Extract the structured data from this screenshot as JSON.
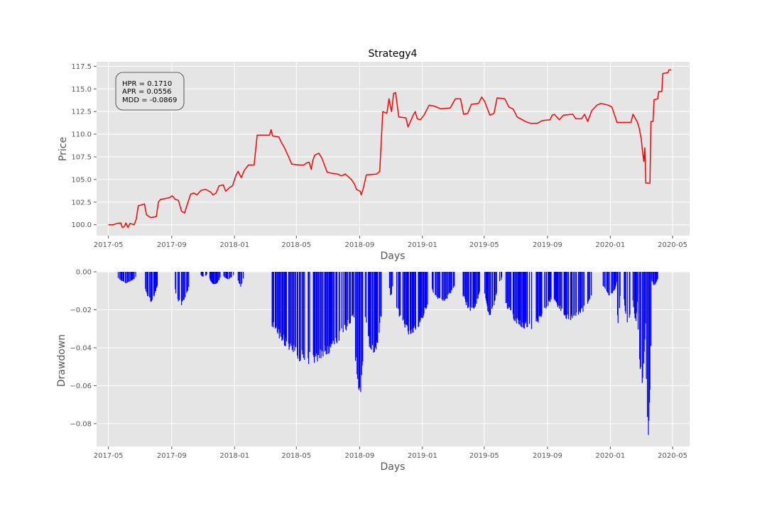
{
  "chart_data": [
    {
      "type": "line",
      "title": "Strategy4",
      "xlabel": "Days",
      "ylabel": "Price",
      "x_tick_labels": [
        "2017-05",
        "2017-09",
        "2018-01",
        "2018-05",
        "2018-09",
        "2019-01",
        "2019-05",
        "2019-09",
        "2020-01",
        "2020-05"
      ],
      "y_tick_labels": [
        "100.0",
        "102.5",
        "105.0",
        "107.5",
        "110.0",
        "112.5",
        "115.0",
        "117.5"
      ],
      "ylim": [
        98.8,
        118.0
      ],
      "xlim": [
        "2017-04-08",
        "2020-06-03"
      ],
      "grid": true,
      "line_color": "#ff0000",
      "stats_box": {
        "hpr": "HPR = 0.1710",
        "apr": "APR = 0.0556",
        "mdd": "MDD = -0.0869"
      },
      "series": [
        {
          "values": [
            [
              "2017-05-01",
              100.0
            ],
            [
              "2017-05-10",
              100.0
            ],
            [
              "2017-05-18",
              100.15
            ],
            [
              "2017-05-25",
              100.2
            ],
            [
              "2017-05-28",
              99.7
            ],
            [
              "2017-06-01",
              99.8
            ],
            [
              "2017-06-04",
              100.2
            ],
            [
              "2017-06-08",
              99.7
            ],
            [
              "2017-06-12",
              100.15
            ],
            [
              "2017-06-20",
              100.0
            ],
            [
              "2017-06-24",
              100.6
            ],
            [
              "2017-06-28",
              102.1
            ],
            [
              "2017-07-05",
              102.2
            ],
            [
              "2017-07-10",
              102.3
            ],
            [
              "2017-07-14",
              101.1
            ],
            [
              "2017-07-22",
              100.8
            ],
            [
              "2017-08-02",
              100.9
            ],
            [
              "2017-08-06",
              102.5
            ],
            [
              "2017-08-10",
              102.8
            ],
            [
              "2017-08-20",
              102.9
            ],
            [
              "2017-08-28",
              103.0
            ],
            [
              "2017-09-02",
              103.2
            ],
            [
              "2017-09-08",
              102.8
            ],
            [
              "2017-09-14",
              102.7
            ],
            [
              "2017-09-20",
              101.5
            ],
            [
              "2017-09-26",
              101.3
            ],
            [
              "2017-10-02",
              102.4
            ],
            [
              "2017-10-08",
              103.4
            ],
            [
              "2017-10-14",
              103.5
            ],
            [
              "2017-10-20",
              103.3
            ],
            [
              "2017-10-28",
              103.8
            ],
            [
              "2017-11-06",
              103.9
            ],
            [
              "2017-11-16",
              103.6
            ],
            [
              "2017-11-20",
              103.3
            ],
            [
              "2017-11-26",
              103.5
            ],
            [
              "2017-12-02",
              104.3
            ],
            [
              "2017-12-10",
              104.4
            ],
            [
              "2017-12-15",
              103.7
            ],
            [
              "2017-12-22",
              104.1
            ],
            [
              "2017-12-28",
              104.3
            ],
            [
              "2018-01-04",
              105.5
            ],
            [
              "2018-01-08",
              105.9
            ],
            [
              "2018-01-14",
              105.2
            ],
            [
              "2018-01-20",
              106.0
            ],
            [
              "2018-01-28",
              106.6
            ],
            [
              "2018-02-08",
              106.6
            ],
            [
              "2018-02-14",
              109.9
            ],
            [
              "2018-02-28",
              109.9
            ],
            [
              "2018-03-10",
              109.9
            ],
            [
              "2018-03-13",
              110.5
            ],
            [
              "2018-03-16",
              109.8
            ],
            [
              "2018-03-28",
              109.7
            ],
            [
              "2018-04-02",
              109.1
            ],
            [
              "2018-04-08",
              108.5
            ],
            [
              "2018-04-16",
              107.5
            ],
            [
              "2018-04-22",
              106.7
            ],
            [
              "2018-05-06",
              106.6
            ],
            [
              "2018-05-16",
              106.6
            ],
            [
              "2018-05-20",
              106.8
            ],
            [
              "2018-05-26",
              106.9
            ],
            [
              "2018-05-30",
              106.1
            ],
            [
              "2018-06-02",
              107.1
            ],
            [
              "2018-06-06",
              107.7
            ],
            [
              "2018-06-14",
              107.9
            ],
            [
              "2018-06-20",
              107.3
            ],
            [
              "2018-06-30",
              105.8
            ],
            [
              "2018-07-08",
              105.7
            ],
            [
              "2018-07-20",
              105.6
            ],
            [
              "2018-07-28",
              105.4
            ],
            [
              "2018-08-04",
              105.6
            ],
            [
              "2018-08-16",
              105.0
            ],
            [
              "2018-08-22",
              104.5
            ],
            [
              "2018-08-26",
              103.9
            ],
            [
              "2018-09-02",
              103.7
            ],
            [
              "2018-09-04",
              103.3
            ],
            [
              "2018-09-08",
              104.0
            ],
            [
              "2018-09-14",
              105.5
            ],
            [
              "2018-10-04",
              105.6
            ],
            [
              "2018-10-10",
              105.9
            ],
            [
              "2018-10-16",
              112.5
            ],
            [
              "2018-10-24",
              112.3
            ],
            [
              "2018-10-28",
              113.9
            ],
            [
              "2018-11-02",
              112.5
            ],
            [
              "2018-11-06",
              114.5
            ],
            [
              "2018-11-10",
              114.6
            ],
            [
              "2018-11-16",
              111.9
            ],
            [
              "2018-11-30",
              111.8
            ],
            [
              "2018-12-04",
              110.8
            ],
            [
              "2018-12-14",
              112.1
            ],
            [
              "2018-12-18",
              112.5
            ],
            [
              "2018-12-22",
              111.7
            ],
            [
              "2018-12-28",
              111.6
            ],
            [
              "2019-01-04",
              112.1
            ],
            [
              "2019-01-14",
              113.2
            ],
            [
              "2019-01-24",
              113.1
            ],
            [
              "2019-02-06",
              112.8
            ],
            [
              "2019-02-24",
              112.9
            ],
            [
              "2019-03-06",
              113.9
            ],
            [
              "2019-03-16",
              113.9
            ],
            [
              "2019-03-22",
              112.2
            ],
            [
              "2019-03-30",
              112.3
            ],
            [
              "2019-04-06",
              113.3
            ],
            [
              "2019-04-20",
              113.4
            ],
            [
              "2019-04-26",
              114.1
            ],
            [
              "2019-05-02",
              113.6
            ],
            [
              "2019-05-12",
              112.1
            ],
            [
              "2019-05-20",
              112.3
            ],
            [
              "2019-05-26",
              114.0
            ],
            [
              "2019-06-10",
              113.9
            ],
            [
              "2019-06-18",
              113.0
            ],
            [
              "2019-06-26",
              112.8
            ],
            [
              "2019-07-04",
              111.9
            ],
            [
              "2019-07-14",
              111.6
            ],
            [
              "2019-07-20",
              111.4
            ],
            [
              "2019-07-30",
              111.2
            ],
            [
              "2019-08-12",
              111.2
            ],
            [
              "2019-08-22",
              111.5
            ],
            [
              "2019-09-06",
              111.6
            ],
            [
              "2019-09-10",
              112.1
            ],
            [
              "2019-09-14",
              112.2
            ],
            [
              "2019-09-24",
              111.6
            ],
            [
              "2019-10-02",
              112.1
            ],
            [
              "2019-10-20",
              112.2
            ],
            [
              "2019-10-26",
              111.7
            ],
            [
              "2019-11-06",
              111.7
            ],
            [
              "2019-11-12",
              112.2
            ],
            [
              "2019-11-18",
              111.4
            ],
            [
              "2019-11-26",
              112.6
            ],
            [
              "2019-12-06",
              113.2
            ],
            [
              "2019-12-14",
              113.4
            ],
            [
              "2019-12-28",
              113.2
            ],
            [
              "2020-01-04",
              113.0
            ],
            [
              "2020-01-14",
              111.3
            ],
            [
              "2020-02-10",
              111.3
            ],
            [
              "2020-02-14",
              112.2
            ],
            [
              "2020-02-22",
              111.4
            ],
            [
              "2020-02-26",
              110.7
            ],
            [
              "2020-03-01",
              109.5
            ],
            [
              "2020-03-04",
              107.9
            ],
            [
              "2020-03-06",
              107.0
            ],
            [
              "2020-03-08",
              108.5
            ],
            [
              "2020-03-10",
              104.6
            ],
            [
              "2020-03-18",
              104.6
            ],
            [
              "2020-03-20",
              111.4
            ],
            [
              "2020-03-24",
              111.4
            ],
            [
              "2020-03-26",
              113.8
            ],
            [
              "2020-04-02",
              113.9
            ],
            [
              "2020-04-04",
              114.7
            ],
            [
              "2020-04-10",
              114.7
            ],
            [
              "2020-04-12",
              116.7
            ],
            [
              "2020-04-22",
              116.8
            ],
            [
              "2020-04-24",
              117.1
            ],
            [
              "2020-04-28",
              117.1
            ]
          ]
        }
      ]
    },
    {
      "type": "bar",
      "xlabel": "Days",
      "ylabel": "Drawdown",
      "x_tick_labels": [
        "2017-05",
        "2017-09",
        "2018-01",
        "2018-05",
        "2018-09",
        "2019-01",
        "2019-05",
        "2019-09",
        "2020-01",
        "2020-05"
      ],
      "y_tick_labels": [
        "0.00",
        "−0.02",
        "−0.04",
        "−0.06",
        "−0.08"
      ],
      "ylim": [
        -0.092,
        0.0
      ],
      "xlim": [
        "2017-04-08",
        "2020-06-03"
      ],
      "grid": true,
      "bar_color": "#0000ff",
      "segments": [
        {
          "from": "2017-05-20",
          "to": "2017-06-24",
          "peak": -0.006
        },
        {
          "from": "2017-07-12",
          "to": "2017-08-04",
          "peak": -0.016
        },
        {
          "from": "2017-09-08",
          "to": "2017-10-04",
          "peak": -0.018
        },
        {
          "from": "2017-10-28",
          "to": "2017-11-08",
          "peak": -0.003
        },
        {
          "from": "2017-11-14",
          "to": "2017-12-04",
          "peak": -0.007
        },
        {
          "from": "2017-12-10",
          "to": "2017-12-30",
          "peak": -0.004
        },
        {
          "from": "2018-01-08",
          "to": "2018-01-18",
          "peak": -0.008
        },
        {
          "from": "2018-03-14",
          "to": "2018-08-22",
          "peak": -0.049
        },
        {
          "from": "2018-08-22",
          "to": "2018-09-12",
          "peak": -0.065
        },
        {
          "from": "2018-09-12",
          "to": "2018-10-14",
          "peak": -0.045
        },
        {
          "from": "2018-10-28",
          "to": "2018-11-05",
          "peak": -0.013
        },
        {
          "from": "2018-11-12",
          "to": "2019-01-12",
          "peak": -0.034
        },
        {
          "from": "2019-01-18",
          "to": "2019-03-04",
          "peak": -0.016
        },
        {
          "from": "2019-03-20",
          "to": "2019-04-24",
          "peak": -0.021
        },
        {
          "from": "2019-05-02",
          "to": "2019-05-25",
          "peak": -0.023
        },
        {
          "from": "2019-05-30",
          "to": "2019-06-04",
          "peak": -0.006
        },
        {
          "from": "2019-06-12",
          "to": "2019-09-08",
          "peak": -0.031
        },
        {
          "from": "2019-09-14",
          "to": "2019-11-26",
          "peak": -0.026
        },
        {
          "from": "2019-12-18",
          "to": "2020-01-14",
          "peak": -0.013
        },
        {
          "from": "2020-01-14",
          "to": "2020-01-20",
          "peak": -0.029
        },
        {
          "from": "2020-01-28",
          "to": "2020-02-12",
          "peak": -0.029
        },
        {
          "from": "2020-02-14",
          "to": "2020-02-24",
          "peak": -0.027
        },
        {
          "from": "2020-02-24",
          "to": "2020-03-10",
          "peak": -0.06
        },
        {
          "from": "2020-03-10",
          "to": "2020-03-20",
          "peak": -0.087
        },
        {
          "from": "2020-03-20",
          "to": "2020-04-03",
          "peak": -0.007
        }
      ]
    }
  ]
}
